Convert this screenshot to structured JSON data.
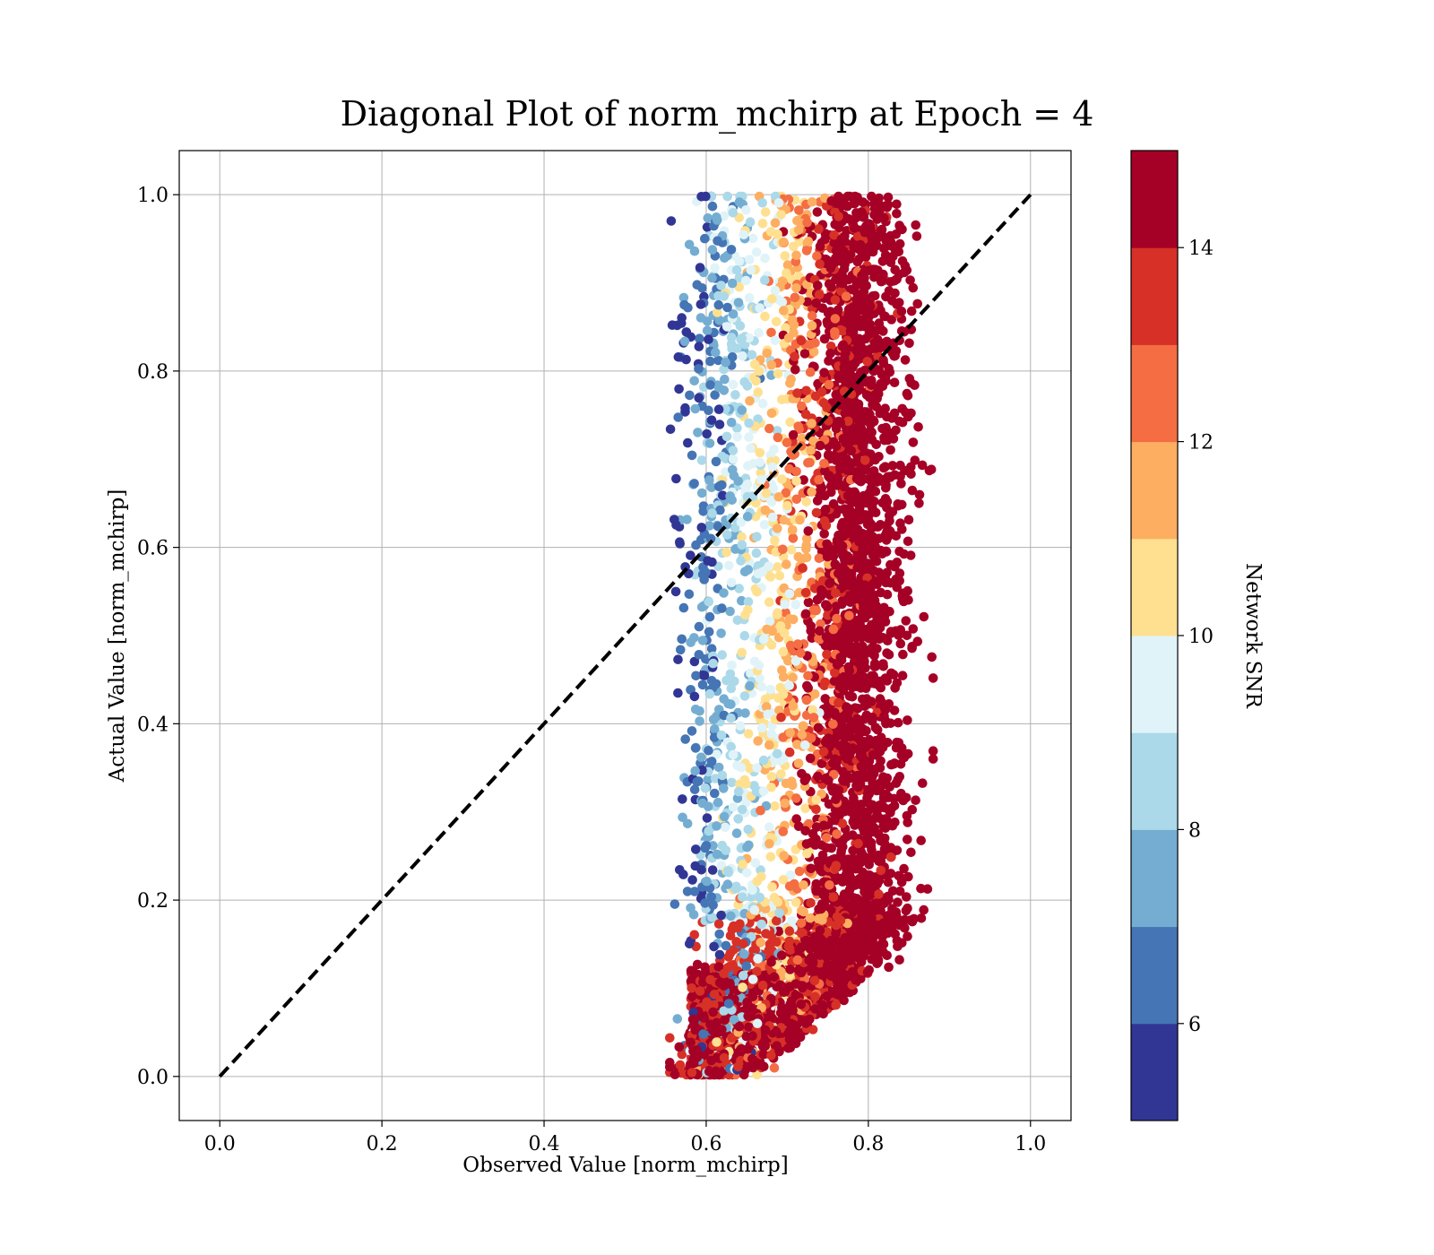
{
  "chart_data": {
    "type": "scatter",
    "title": "Diagonal Plot of norm_mchirp at Epoch = 4",
    "xlabel": "Observed Value [norm_mchirp]",
    "ylabel": "Actual Value [norm_mchirp]",
    "xlim": [
      -0.05,
      1.05
    ],
    "ylim": [
      -0.05,
      1.05
    ],
    "xticks": [
      "0.0",
      "0.2",
      "0.4",
      "0.6",
      "0.8",
      "1.0"
    ],
    "yticks": [
      "0.0",
      "0.2",
      "0.4",
      "0.6",
      "0.8",
      "1.0"
    ],
    "grid": true,
    "reference_line": {
      "style": "dashed",
      "color": "#000000",
      "from": [
        0,
        0
      ],
      "to": [
        1,
        1
      ]
    },
    "colorbar": {
      "label": "Network SNR",
      "range": [
        5,
        15
      ],
      "ticks": [
        "6",
        "8",
        "10",
        "12",
        "14"
      ],
      "colormap": "RdYlBu_r",
      "colors": [
        "#313695",
        "#4575b4",
        "#74add1",
        "#abd9e9",
        "#e0f3f8",
        "#fee090",
        "#fdae61",
        "#f46d43",
        "#d73027",
        "#a50026"
      ]
    },
    "point_distribution": {
      "x_range": [
        0.53,
        0.88
      ],
      "y_range": [
        0.0,
        1.0
      ],
      "description_points": [
        {
          "y": 1.0,
          "x_low_snr": 0.6,
          "x_high_snr": 0.81
        },
        {
          "y": 0.8,
          "x_low_snr": 0.6,
          "x_high_snr": 0.81
        },
        {
          "y": 0.6,
          "x_low_snr": 0.6,
          "x_high_snr": 0.81
        },
        {
          "y": 0.4,
          "x_low_snr": 0.6,
          "x_high_snr": 0.81
        },
        {
          "y": 0.2,
          "x_low_snr": 0.6,
          "x_high_snr": 0.8
        },
        {
          "y": 0.05,
          "x_low_snr": 0.6,
          "x_high_snr": 0.68
        }
      ]
    }
  }
}
